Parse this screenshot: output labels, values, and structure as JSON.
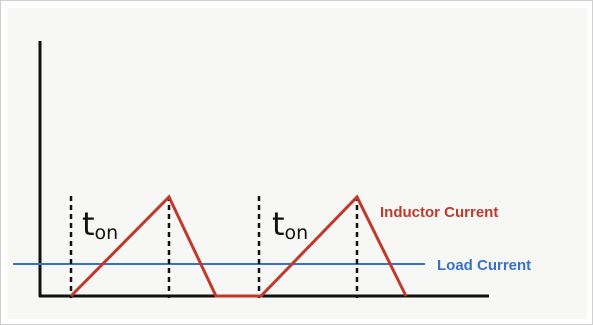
{
  "diagram": {
    "pulse_labels": [
      {
        "main": "t",
        "sub": "on"
      },
      {
        "main": "t",
        "sub": "on"
      }
    ],
    "inductor_label": "Inductor Current",
    "load_label": "Load Current",
    "colors": {
      "inductor": "#c0392b",
      "load": "#3a72c9",
      "axis": "#111111",
      "background": "#f7f7f6"
    }
  }
}
